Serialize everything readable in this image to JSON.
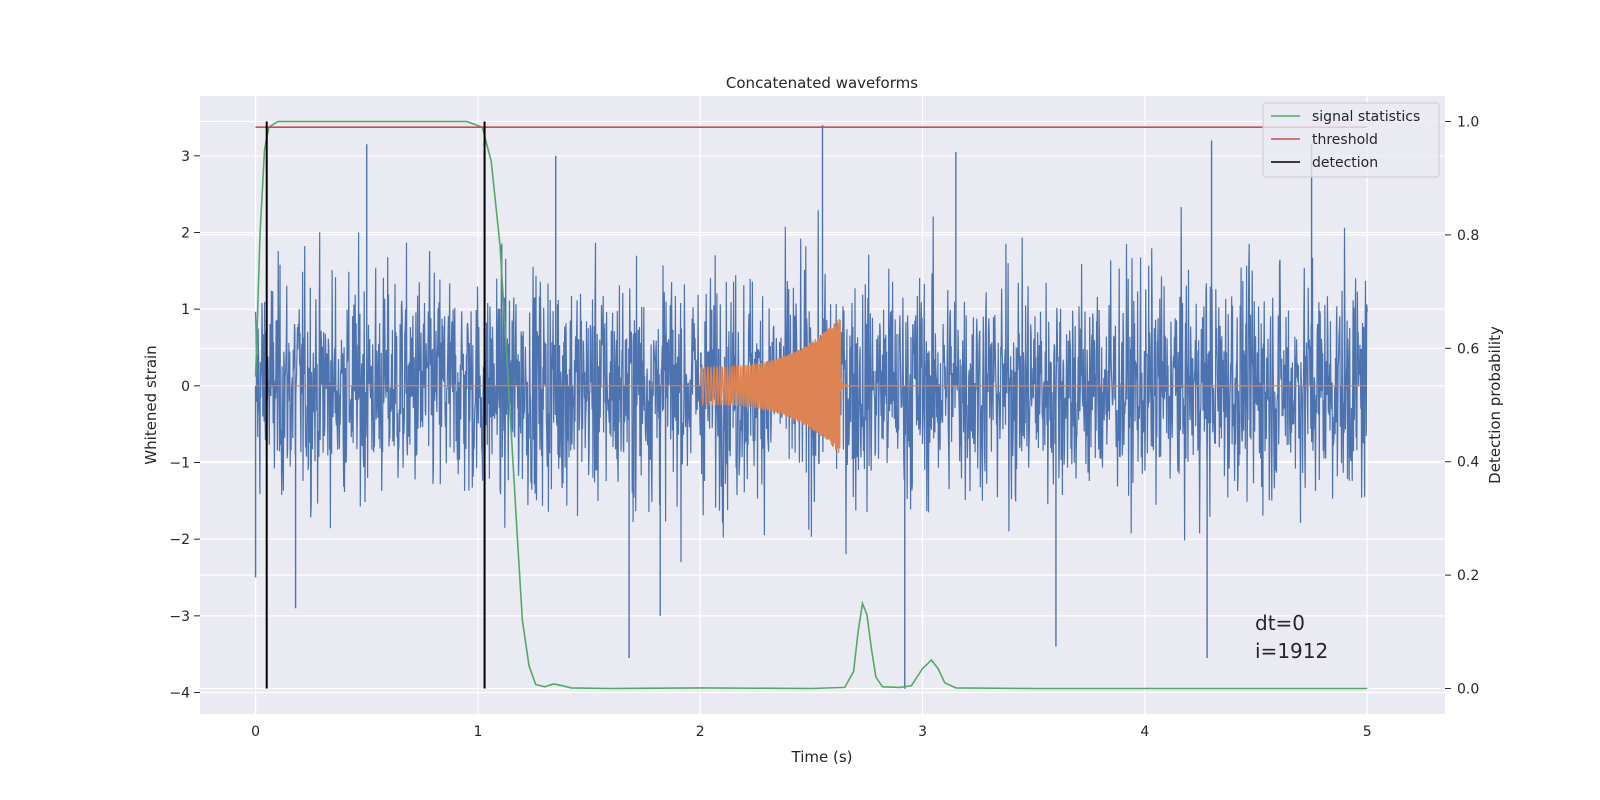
{
  "chart_data": {
    "type": "line",
    "title": "Concatenated waveforms",
    "xlabel": "Time (s)",
    "ylabel": "Whitened strain",
    "y2label": "Detection probability",
    "xlim": [
      -0.25,
      5.35
    ],
    "ylim": [
      -4.28,
      3.78
    ],
    "y2lim": [
      -0.045,
      1.045
    ],
    "xticks": [
      0,
      1,
      2,
      3,
      4,
      5
    ],
    "xtick_labels": [
      "0",
      "1",
      "2",
      "3",
      "4",
      "5"
    ],
    "yticks": [
      -4,
      -3,
      -2,
      -1,
      0,
      1,
      2,
      3
    ],
    "ytick_labels": [
      "−4",
      "−3",
      "−2",
      "−1",
      "0",
      "1",
      "2",
      "3"
    ],
    "y2ticks": [
      0.0,
      0.2,
      0.4,
      0.6,
      0.8,
      1.0
    ],
    "y2tick_labels": [
      "0.0",
      "0.2",
      "0.4",
      "0.6",
      "0.8",
      "1.0"
    ],
    "grid": true,
    "legend_position": "top-right",
    "background": "#eaeaf2",
    "noise": {
      "x_range": [
        0,
        5
      ],
      "typical_amplitude": 1.2,
      "extremes": [
        {
          "x": 0.0,
          "y": -2.5
        },
        {
          "x": 0.18,
          "y": -2.9
        },
        {
          "x": 0.5,
          "y": 3.15
        },
        {
          "x": 1.35,
          "y": 3.0
        },
        {
          "x": 1.68,
          "y": -3.55
        },
        {
          "x": 1.82,
          "y": -3.0
        },
        {
          "x": 2.55,
          "y": 3.4
        },
        {
          "x": 2.92,
          "y": -3.95
        },
        {
          "x": 3.15,
          "y": 3.05
        },
        {
          "x": 3.6,
          "y": -3.4
        },
        {
          "x": 4.28,
          "y": -3.55
        },
        {
          "x": 4.3,
          "y": 3.2
        },
        {
          "x": 4.75,
          "y": 3.15
        }
      ]
    },
    "injection": {
      "start": 2.0,
      "merger": 2.63,
      "start_amplitude": 0.25,
      "peak_amplitude": 0.9,
      "start_frequency": 60,
      "end_frequency": 220
    },
    "signal_statistics": [
      [
        0.0,
        0.55
      ],
      [
        0.02,
        0.8
      ],
      [
        0.04,
        0.95
      ],
      [
        0.06,
        0.99
      ],
      [
        0.1,
        1.0
      ],
      [
        0.5,
        1.0
      ],
      [
        0.95,
        1.0
      ],
      [
        1.02,
        0.99
      ],
      [
        1.06,
        0.93
      ],
      [
        1.1,
        0.78
      ],
      [
        1.14,
        0.52
      ],
      [
        1.18,
        0.25
      ],
      [
        1.2,
        0.12
      ],
      [
        1.23,
        0.04
      ],
      [
        1.26,
        0.007
      ],
      [
        1.3,
        0.003
      ],
      [
        1.34,
        0.008
      ],
      [
        1.38,
        0.005
      ],
      [
        1.42,
        0.001
      ],
      [
        1.6,
        0.0
      ],
      [
        2.0,
        0.001
      ],
      [
        2.5,
        0.0
      ],
      [
        2.65,
        0.002
      ],
      [
        2.69,
        0.03
      ],
      [
        2.71,
        0.1
      ],
      [
        2.73,
        0.15
      ],
      [
        2.75,
        0.13
      ],
      [
        2.77,
        0.07
      ],
      [
        2.79,
        0.02
      ],
      [
        2.82,
        0.003
      ],
      [
        2.9,
        0.002
      ],
      [
        2.95,
        0.005
      ],
      [
        3.0,
        0.035
      ],
      [
        3.04,
        0.05
      ],
      [
        3.07,
        0.035
      ],
      [
        3.1,
        0.01
      ],
      [
        3.15,
        0.001
      ],
      [
        3.5,
        0.0
      ],
      [
        5.0,
        0.0
      ]
    ],
    "threshold": 0.99,
    "detections": [
      0.05,
      1.03
    ],
    "series": [
      {
        "name": "signal statistics",
        "color": "#55a868"
      },
      {
        "name": "threshold",
        "color": "#c44e52"
      },
      {
        "name": "detection",
        "color": "#000000"
      }
    ],
    "noise_color": "#4c72b0",
    "injection_color": "#dd8452",
    "annotations": [
      "dt=0",
      "i=1912"
    ]
  }
}
